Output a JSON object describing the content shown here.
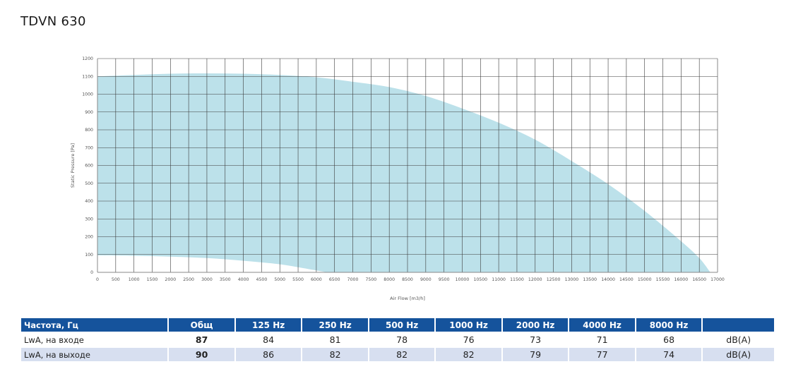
{
  "title": "TDVN 630",
  "chart_data": {
    "type": "area",
    "xlabel": "Air Flow [m3/h]",
    "ylabel": "Static Pressure [Pa]",
    "xlim": [
      0,
      17000
    ],
    "ylim": [
      0,
      1200
    ],
    "x_ticks": [
      0,
      500,
      1000,
      1500,
      2000,
      2500,
      3000,
      3500,
      4000,
      4500,
      5000,
      5500,
      6000,
      6500,
      7000,
      7500,
      8000,
      8500,
      9000,
      9500,
      10000,
      10500,
      11000,
      11500,
      12000,
      12500,
      13000,
      13500,
      14000,
      14500,
      15000,
      15500,
      16000,
      16500,
      17000
    ],
    "y_ticks": [
      0,
      100,
      200,
      300,
      400,
      500,
      600,
      700,
      800,
      900,
      1000,
      1100,
      1200
    ],
    "grid": true,
    "fill_color": "#bce1ea",
    "upper_curve": {
      "x": [
        0,
        1000,
        2000,
        3000,
        4000,
        5000,
        6000,
        7000,
        8000,
        9000,
        10000,
        11000,
        12000,
        13000,
        14000,
        15000,
        16000,
        16500,
        16800
      ],
      "y": [
        1100,
        1108,
        1115,
        1117,
        1115,
        1108,
        1095,
        1070,
        1040,
        990,
        920,
        840,
        745,
        625,
        495,
        345,
        175,
        80,
        0
      ]
    },
    "lower_curve": {
      "x": [
        0,
        1000,
        2000,
        3000,
        4000,
        5000,
        5800,
        6300
      ],
      "y": [
        95,
        93,
        88,
        80,
        65,
        45,
        18,
        0
      ]
    }
  },
  "table": {
    "header": [
      "Частота, Гц",
      "Общ",
      "125 Hz",
      "250 Hz",
      "500 Hz",
      "1000 Hz",
      "2000 Hz",
      "4000 Hz",
      "8000 Hz",
      ""
    ],
    "rows": [
      [
        "LwA, на входе",
        "87",
        "84",
        "81",
        "78",
        "76",
        "73",
        "71",
        "68",
        "dB(A)"
      ],
      [
        "LwA, на выходе",
        "90",
        "86",
        "82",
        "82",
        "82",
        "79",
        "77",
        "74",
        "dB(A)"
      ]
    ]
  }
}
